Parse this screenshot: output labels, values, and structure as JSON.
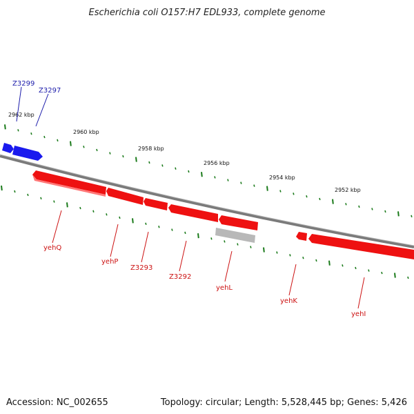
{
  "title": "Escherichia coli O157:H7 EDL933, complete genome",
  "footer": {
    "accession": "Accession: NC_002655",
    "summary": "Topology: circular; Length: 5,528,445 bp; Genes: 5,426"
  },
  "colors": {
    "backbone": "#7a7a7a",
    "forward_gene": "#1a1aee",
    "reverse_gene": "#ee1111",
    "pseudo_gene": "#b8b8b8",
    "tick": "#1a7a1a",
    "forward_label": "#1a1aaa",
    "reverse_label": "#cc1111"
  },
  "scale_labels": [
    "2962 kbp",
    "2960 kbp",
    "2958 kbp",
    "2956 kbp",
    "2954 kbp",
    "2952 kbp"
  ],
  "genes_forward": [
    {
      "name": "Z3299"
    },
    {
      "name": "Z3297"
    }
  ],
  "genes_reverse": [
    {
      "name": "yehQ"
    },
    {
      "name": "yehP"
    },
    {
      "name": "Z3293"
    },
    {
      "name": "Z3292"
    },
    {
      "name": "yehL"
    },
    {
      "name": "yehK"
    },
    {
      "name": "yehI"
    }
  ]
}
